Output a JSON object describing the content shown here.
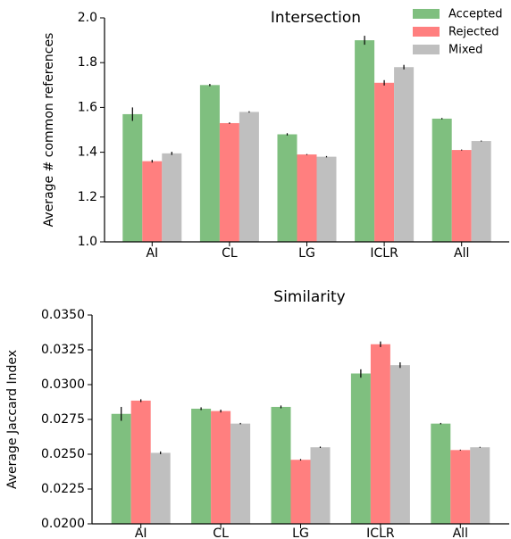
{
  "chart_data": [
    {
      "type": "bar",
      "title": "Intersection",
      "y_label": "Average # common references",
      "categories": [
        "AI",
        "CL",
        "LG",
        "ICLR",
        "All"
      ],
      "series": [
        {
          "name": "Accepted",
          "color": "#7fbf7f",
          "values": [
            1.57,
            1.7,
            1.48,
            1.9,
            1.55
          ],
          "errors": [
            0.03,
            0.005,
            0.005,
            0.02,
            0.003
          ]
        },
        {
          "name": "Rejected",
          "color": "#ff7f7f",
          "values": [
            1.36,
            1.53,
            1.39,
            1.71,
            1.41
          ],
          "errors": [
            0.006,
            0.003,
            0.002,
            0.012,
            0.002
          ]
        },
        {
          "name": "Mixed",
          "color": "#bfbfbf",
          "values": [
            1.395,
            1.58,
            1.38,
            1.78,
            1.45
          ],
          "errors": [
            0.007,
            0.003,
            0.003,
            0.01,
            0.002
          ]
        }
      ],
      "ylim": [
        1.0,
        2.0
      ],
      "yticks": [
        {
          "value": 1.0,
          "label": "1.0"
        },
        1.2,
        1.4,
        1.6,
        1.8,
        {
          "value": 2.0,
          "label": "2.0"
        }
      ],
      "legend": "upper right"
    },
    {
      "type": "bar",
      "title": "Similarity",
      "y_label": "Average Jaccard Index",
      "categories": [
        "AI",
        "CL",
        "LG",
        "ICLR",
        "All"
      ],
      "series": [
        {
          "color": "#7fbf7f",
          "values": [
            0.0279,
            0.02827,
            0.0284,
            0.0308,
            0.0272
          ],
          "errors": [
            0.0005,
            0.0001,
            0.0001,
            0.0003,
            5e-05
          ]
        },
        {
          "color": "#ff7f7f",
          "values": [
            0.02885,
            0.0281,
            0.0246,
            0.0329,
            0.0253
          ],
          "errors": [
            0.0001,
            0.0001,
            5e-05,
            0.0002,
            3e-05
          ]
        },
        {
          "color": "#bfbfbf",
          "values": [
            0.0251,
            0.0272,
            0.0255,
            0.0314,
            0.0255
          ],
          "errors": [
            0.0001,
            5e-05,
            5e-05,
            0.0002,
            3e-05
          ]
        }
      ],
      "ylim": [
        0.02,
        0.035
      ],
      "yticks": [
        {
          "value": 0.02,
          "label": "0.0200"
        },
        0.0225,
        {
          "value": 0.025,
          "label": "0.0250"
        },
        0.0275,
        {
          "value": 0.03,
          "label": "0.0300"
        },
        0.0325,
        {
          "value": 0.035,
          "label": "0.0350"
        }
      ]
    }
  ]
}
